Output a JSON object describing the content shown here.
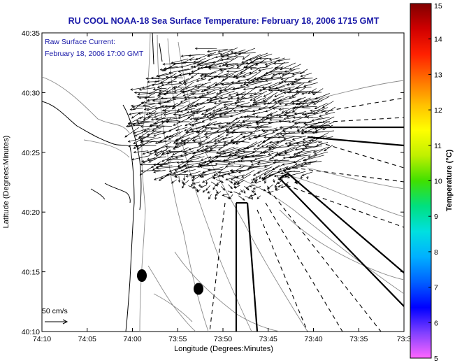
{
  "title": "RU COOL  NOAA-18  Sea Surface Temperature:  February 18, 2006 1715 GMT",
  "annotation": {
    "line1": "Raw Surface Current:",
    "line2": "February 18, 2006 17:00 GMT"
  },
  "scale_label": "50 cm/s",
  "colorbar": {
    "label": "Temperature (°C)",
    "min": 5,
    "max": 15,
    "ticks": [
      "5",
      "6",
      "7",
      "8",
      "9",
      "10",
      "11",
      "12",
      "13",
      "14",
      "15"
    ],
    "colors": [
      "#ff66ff",
      "#8040ff",
      "#0000ff",
      "#0060ff",
      "#00b0ff",
      "#00e0e0",
      "#00e080",
      "#40e000",
      "#c0f000",
      "#ffff00",
      "#ffc000",
      "#ff7000",
      "#ff2000",
      "#d00000",
      "#800000"
    ]
  },
  "map": {
    "xlabel": "Longitude (Degrees:Minutes)",
    "ylabel": "Latitude (Degrees:Minutes)",
    "lon_ticks": [
      "74:10",
      "74:05",
      "74:00",
      "73:55",
      "73:50",
      "73:45",
      "73:40",
      "73:35",
      "73:3"
    ],
    "lat_ticks": [
      "40:35",
      "40:30",
      "40:25",
      "40:20",
      "40:15",
      "40:10"
    ],
    "lon_range": [
      -74.1667,
      -73.5
    ],
    "lat_range": [
      40.1667,
      40.5833
    ]
  },
  "colors": {
    "title": "#1a1aa8",
    "coast": "#000000",
    "bathymetry": "#8c8c8c",
    "vectors": "#000000"
  }
}
